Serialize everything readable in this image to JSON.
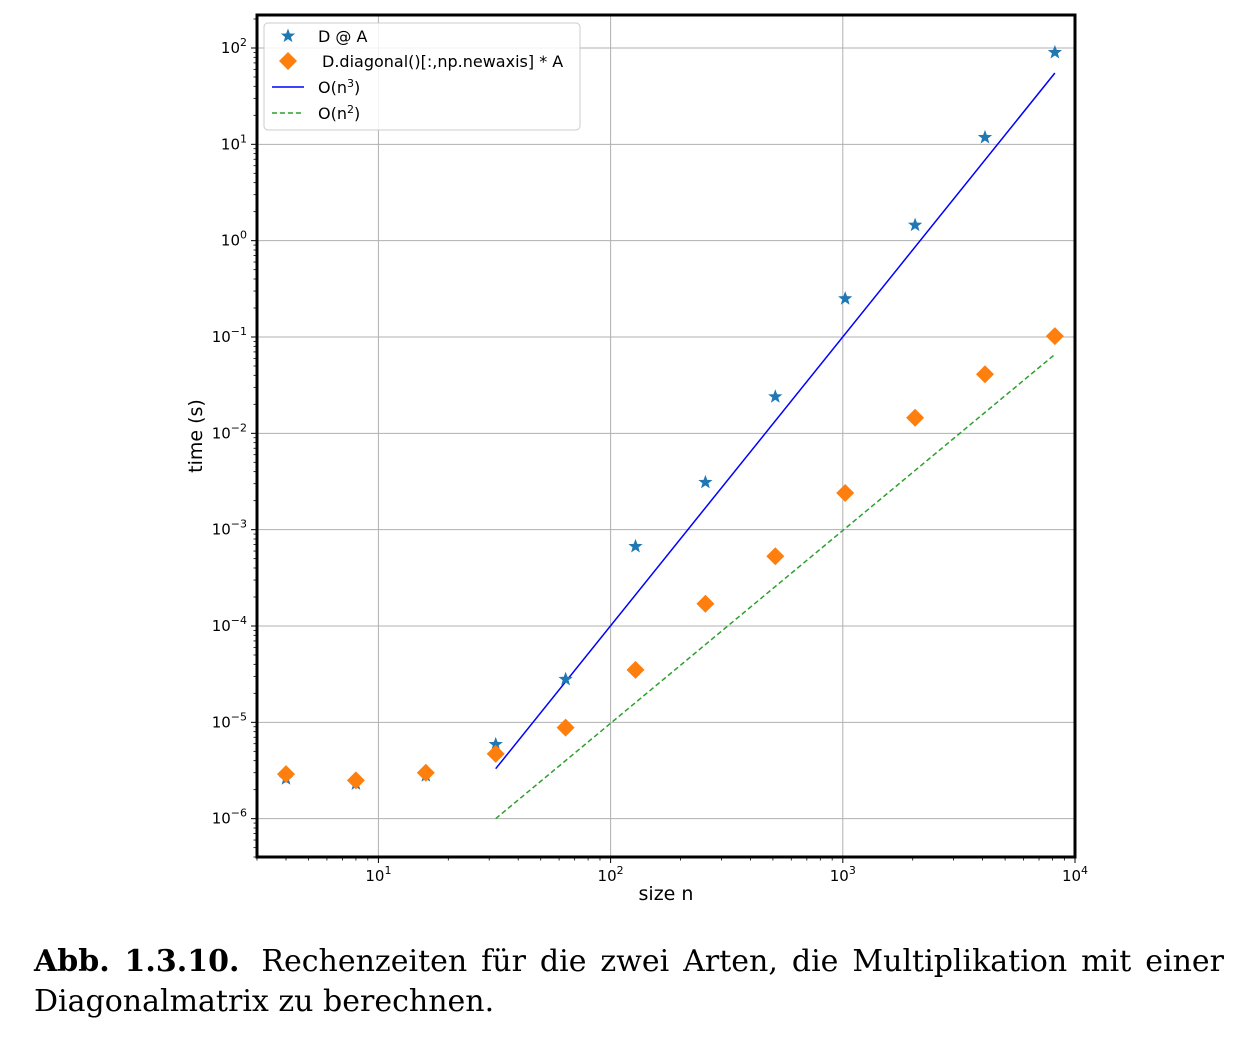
{
  "chart_data": {
    "type": "scatter",
    "xlabel": "size n",
    "ylabel": "time (s)",
    "xscale": "log",
    "yscale": "log",
    "xlim": [
      3.0,
      10000
    ],
    "ylim": [
      4e-07,
      220
    ],
    "grid": true,
    "legend_position": "top-left",
    "x_ticks": [
      {
        "value": 10,
        "base": "10",
        "exp": "1"
      },
      {
        "value": 100,
        "base": "10",
        "exp": "2"
      },
      {
        "value": 1000,
        "base": "10",
        "exp": "3"
      },
      {
        "value": 10000,
        "base": "10",
        "exp": "4"
      }
    ],
    "y_ticks": [
      {
        "value": 1e-06,
        "base": "10",
        "exp": "−6"
      },
      {
        "value": 1e-05,
        "base": "10",
        "exp": "−5"
      },
      {
        "value": 0.0001,
        "base": "10",
        "exp": "−4"
      },
      {
        "value": 0.001,
        "base": "10",
        "exp": "−3"
      },
      {
        "value": 0.01,
        "base": "10",
        "exp": "−2"
      },
      {
        "value": 0.1,
        "base": "10",
        "exp": "−1"
      },
      {
        "value": 1,
        "base": "10",
        "exp": "0"
      },
      {
        "value": 10,
        "base": "10",
        "exp": "1"
      },
      {
        "value": 100,
        "base": "10",
        "exp": "2"
      }
    ],
    "series": [
      {
        "name": "D @ A",
        "kind": "scatter",
        "marker": "star",
        "color": "#1f77b4",
        "x": [
          4,
          8,
          16,
          32,
          64,
          128,
          256,
          512,
          1024,
          2048,
          4096,
          8192
        ],
        "y": [
          2.6e-06,
          2.3e-06,
          2.8e-06,
          5.9e-06,
          2.8e-05,
          0.00067,
          0.0031,
          0.024,
          0.25,
          1.45,
          11.8,
          90
        ]
      },
      {
        "name": "D.diagonal()[:,np.newaxis] * A",
        "kind": "scatter",
        "marker": "diamond",
        "color": "#ff7f0e",
        "x": [
          4,
          8,
          16,
          32,
          64,
          128,
          256,
          512,
          1024,
          2048,
          4096,
          8192
        ],
        "y": [
          2.9e-06,
          2.5e-06,
          3e-06,
          4.7e-06,
          8.8e-06,
          3.5e-05,
          0.00017,
          0.00053,
          0.0024,
          0.0145,
          0.041,
          0.102
        ]
      },
      {
        "name": "O(n",
        "name_sup": "3",
        "name_suffix": ")",
        "kind": "line",
        "style": "solid",
        "color": "#0000ff",
        "x": [
          32,
          8192
        ],
        "y": [
          3.3e-06,
          55
        ]
      },
      {
        "name": "O(n",
        "name_sup": "2",
        "name_suffix": ")",
        "kind": "line",
        "style": "dashed",
        "color": "#2ca02c",
        "x": [
          32,
          8192
        ],
        "y": [
          1e-06,
          0.066
        ]
      }
    ]
  },
  "caption": {
    "label": "Abb. 1.3.10.",
    "text": "Rechenzeiten für die zwei Arten, die Multiplikation mit einer Diagonalmatrix zu berechnen."
  }
}
